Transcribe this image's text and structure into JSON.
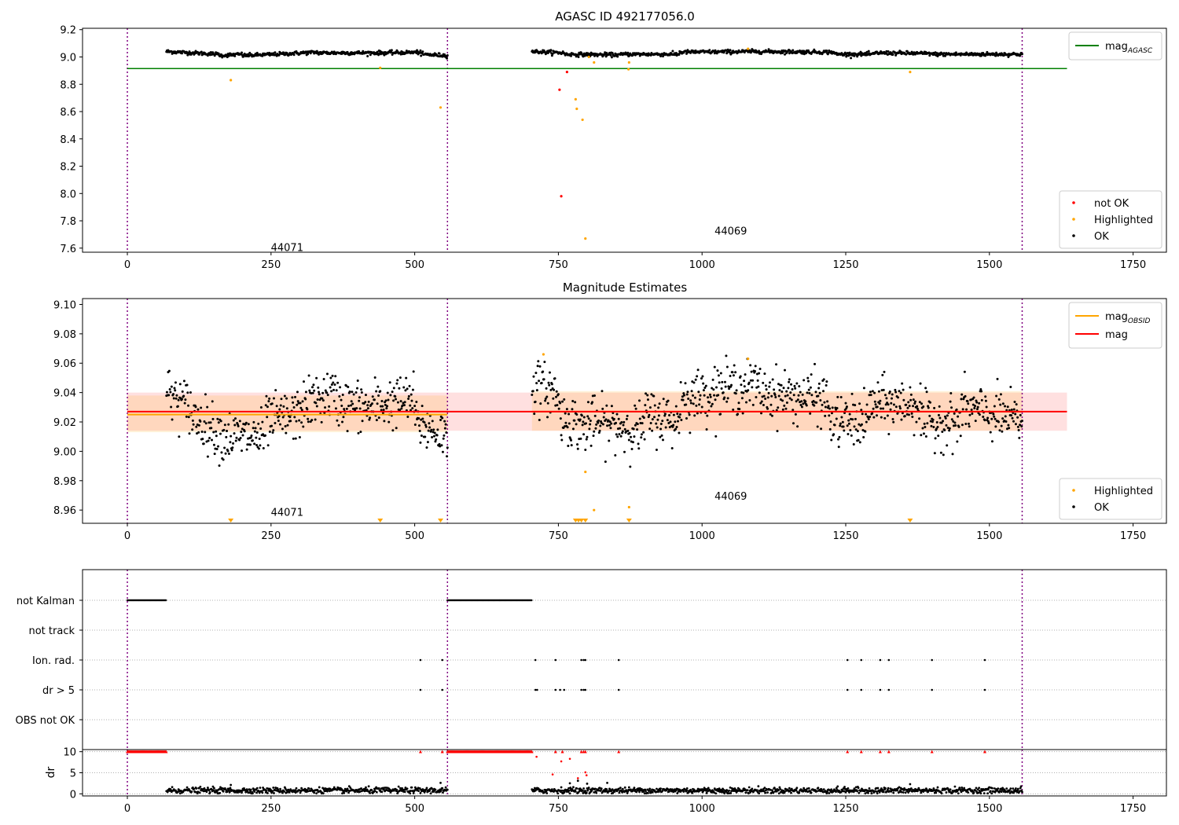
{
  "chart_data": [
    {
      "type": "scatter",
      "title": "AGASC ID 492177056.0",
      "xlim": [
        -78,
        1808
      ],
      "ylim": [
        7.57,
        9.21
      ],
      "xticks": [
        0,
        250,
        500,
        750,
        1000,
        1250,
        1500,
        1750
      ],
      "yticks": [
        7.6,
        7.8,
        8.0,
        8.2,
        8.4,
        8.6,
        8.8,
        9.0,
        9.2
      ],
      "obs_boundaries": [
        0,
        557,
        1557
      ],
      "obsid_labels": [
        {
          "text": "44071",
          "x": 278,
          "y": 7.58
        },
        {
          "text": "44069",
          "x": 1050,
          "y": 7.7
        }
      ],
      "mag_agasc": {
        "value": 8.915,
        "x_range": [
          0,
          1635
        ]
      },
      "ok_points": {
        "ranges": [
          [
            68,
            557
          ],
          [
            704,
            1557
          ]
        ],
        "segments": [
          {
            "x0": 68,
            "x1": 160,
            "y0": 9.04,
            "y1": 9.02
          },
          {
            "x0": 160,
            "x1": 200,
            "y0": 9.01,
            "y1": 9.02
          },
          {
            "x0": 200,
            "x1": 260,
            "y0": 9.01,
            "y1": 9.02
          },
          {
            "x0": 260,
            "x1": 330,
            "y0": 9.02,
            "y1": 9.035
          },
          {
            "x0": 330,
            "x1": 450,
            "y0": 9.03,
            "y1": 9.03
          },
          {
            "x0": 450,
            "x1": 510,
            "y0": 9.03,
            "y1": 9.035
          },
          {
            "x0": 510,
            "x1": 557,
            "y0": 9.02,
            "y1": 9.01
          },
          {
            "x0": 704,
            "x1": 760,
            "y0": 9.04,
            "y1": 9.03
          },
          {
            "x0": 760,
            "x1": 860,
            "y0": 9.02,
            "y1": 9.015
          },
          {
            "x0": 860,
            "x1": 960,
            "y0": 9.02,
            "y1": 9.02
          },
          {
            "x0": 960,
            "x1": 1100,
            "y0": 9.035,
            "y1": 9.04
          },
          {
            "x0": 1100,
            "x1": 1230,
            "y0": 9.04,
            "y1": 9.035
          },
          {
            "x0": 1230,
            "x1": 1300,
            "y0": 9.02,
            "y1": 9.02
          },
          {
            "x0": 1300,
            "x1": 1400,
            "y0": 9.03,
            "y1": 9.025
          },
          {
            "x0": 1400,
            "x1": 1557,
            "y0": 9.02,
            "y1": 9.02
          }
        ]
      },
      "highlighted_points": [
        {
          "x": 180,
          "y": 8.83
        },
        {
          "x": 440,
          "y": 8.92
        },
        {
          "x": 545,
          "y": 8.63
        },
        {
          "x": 780,
          "y": 8.69
        },
        {
          "x": 782,
          "y": 8.62
        },
        {
          "x": 792,
          "y": 8.54
        },
        {
          "x": 797,
          "y": 7.67
        },
        {
          "x": 803,
          "y": 9.0
        },
        {
          "x": 812,
          "y": 8.96
        },
        {
          "x": 872,
          "y": 8.91
        },
        {
          "x": 873,
          "y": 8.96
        },
        {
          "x": 1362,
          "y": 8.89
        },
        {
          "x": 1080,
          "y": 9.06
        }
      ],
      "not_ok_points": [
        {
          "x": 752,
          "y": 8.76
        },
        {
          "x": 755,
          "y": 7.98
        },
        {
          "x": 765,
          "y": 8.89
        }
      ],
      "legends": [
        {
          "position": "upper right",
          "entries": [
            {
              "label": "mag",
              "sub": "AGASC",
              "color": "#008000"
            }
          ]
        },
        {
          "position": "lower right",
          "entries": [
            {
              "label": "not OK",
              "color": "#ff0000"
            },
            {
              "label": "Highlighted",
              "color": "#ffa500"
            },
            {
              "label": "OK",
              "color": "#000000"
            }
          ]
        }
      ]
    },
    {
      "type": "scatter",
      "title": "Magnitude Estimates",
      "xlim": [
        -78,
        1808
      ],
      "ylim": [
        8.951,
        9.104
      ],
      "xticks": [
        0,
        250,
        500,
        750,
        1000,
        1250,
        1500,
        1750
      ],
      "yticks": [
        8.96,
        8.98,
        9.0,
        9.02,
        9.04,
        9.06,
        9.08,
        9.1
      ],
      "obs_boundaries": [
        0,
        557,
        1557
      ],
      "obsid_labels": [
        {
          "text": "44071",
          "x": 278,
          "y": 8.956
        },
        {
          "text": "44069",
          "x": 1050,
          "y": 8.967
        }
      ],
      "mag": {
        "value": 9.027,
        "band": [
          9.014,
          9.04
        ],
        "x_range": [
          0,
          1635
        ]
      },
      "mag_obsid": [
        {
          "value": 9.025,
          "band": [
            9.013,
            9.038
          ],
          "x_range": [
            0,
            557
          ]
        },
        {
          "value": 9.027,
          "band": [
            9.014,
            9.041
          ],
          "x_range": [
            704,
            1557
          ]
        }
      ],
      "ok_points": {
        "ranges": [
          [
            68,
            557
          ],
          [
            704,
            1557
          ]
        ],
        "segments": [
          {
            "x0": 68,
            "x1": 110,
            "y0": 9.04,
            "y1": 9.03
          },
          {
            "x0": 110,
            "x1": 170,
            "y0": 9.025,
            "y1": 9.01
          },
          {
            "x0": 170,
            "x1": 240,
            "y0": 9.01,
            "y1": 9.01
          },
          {
            "x0": 240,
            "x1": 300,
            "y0": 9.02,
            "y1": 9.025
          },
          {
            "x0": 300,
            "x1": 360,
            "y0": 9.03,
            "y1": 9.04
          },
          {
            "x0": 360,
            "x1": 430,
            "y0": 9.035,
            "y1": 9.028
          },
          {
            "x0": 430,
            "x1": 500,
            "y0": 9.032,
            "y1": 9.035
          },
          {
            "x0": 500,
            "x1": 557,
            "y0": 9.02,
            "y1": 9.01
          },
          {
            "x0": 704,
            "x1": 750,
            "y0": 9.045,
            "y1": 9.04
          },
          {
            "x0": 750,
            "x1": 800,
            "y0": 9.025,
            "y1": 9.015
          },
          {
            "x0": 800,
            "x1": 900,
            "y0": 9.02,
            "y1": 9.015
          },
          {
            "x0": 900,
            "x1": 960,
            "y0": 9.025,
            "y1": 9.02
          },
          {
            "x0": 960,
            "x1": 1020,
            "y0": 9.035,
            "y1": 9.04
          },
          {
            "x0": 1020,
            "x1": 1100,
            "y0": 9.042,
            "y1": 9.045
          },
          {
            "x0": 1100,
            "x1": 1220,
            "y0": 9.04,
            "y1": 9.035
          },
          {
            "x0": 1220,
            "x1": 1290,
            "y0": 9.02,
            "y1": 9.02
          },
          {
            "x0": 1290,
            "x1": 1380,
            "y0": 9.032,
            "y1": 9.032
          },
          {
            "x0": 1380,
            "x1": 1450,
            "y0": 9.02,
            "y1": 9.02
          },
          {
            "x0": 1450,
            "x1": 1557,
            "y0": 9.03,
            "y1": 9.02
          }
        ]
      },
      "highlighted_points": [
        {
          "x": 724,
          "y": 9.066
        },
        {
          "x": 1080,
          "y": 9.063
        },
        {
          "x": 797,
          "y": 8.986
        },
        {
          "x": 812,
          "y": 8.96
        },
        {
          "x": 873,
          "y": 8.962
        }
      ],
      "highlighted_below_range_x": [
        180,
        440,
        545,
        780,
        785,
        790,
        797,
        873,
        1362
      ],
      "legends": [
        {
          "position": "upper right",
          "entries": [
            {
              "label": "mag",
              "sub": "OBSID",
              "color": "#ffa500"
            },
            {
              "label": "mag",
              "color": "#ff0000"
            }
          ]
        },
        {
          "position": "lower right",
          "entries": [
            {
              "label": "Highlighted",
              "color": "#ffa500"
            },
            {
              "label": "OK",
              "color": "#000000"
            }
          ]
        }
      ]
    },
    {
      "type": "scatter",
      "title": "",
      "xlim": [
        -78,
        1808
      ],
      "xticks": [
        0,
        250,
        500,
        750,
        1000,
        1250,
        1500,
        1750
      ],
      "obs_boundaries": [
        0,
        557,
        1557
      ],
      "flag_rows": [
        "not Kalman",
        "not track",
        "Ion. rad.",
        "dr > 5",
        "OBS not OK"
      ],
      "flags": {
        "not Kalman": {
          "ranges": [
            [
              0,
              68
            ],
            [
              557,
              704
            ]
          ]
        },
        "not track": {
          "x": []
        },
        "Ion. rad.": {
          "x": [
            510,
            548,
            710,
            745,
            790,
            794,
            797,
            855,
            1253,
            1277,
            1310,
            1325,
            1400,
            1492
          ]
        },
        "dr > 5": {
          "x": [
            510,
            548,
            710,
            713,
            745,
            753,
            760,
            790,
            794,
            797,
            855,
            1253,
            1277,
            1310,
            1325,
            1400,
            1492
          ]
        },
        "OBS not OK": {
          "x": []
        }
      },
      "dr": {
        "ylabel": "dr",
        "ylim": [
          -0.5,
          10.5
        ],
        "yticks": [
          0,
          5,
          10
        ],
        "ok": {
          "ranges": [
            [
              68,
              557
            ],
            [
              704,
              1557
            ]
          ],
          "typical": 0.8
        },
        "ok_outliers": [
          {
            "x": 180,
            "y": 2.1
          },
          {
            "x": 545,
            "y": 2.6
          },
          {
            "x": 770,
            "y": 2.5
          },
          {
            "x": 784,
            "y": 3.1
          },
          {
            "x": 800,
            "y": 2.4
          },
          {
            "x": 835,
            "y": 2.6
          },
          {
            "x": 1362,
            "y": 2.3
          }
        ],
        "not_ok_capped": {
          "ranges": [
            [
              0,
              68
            ],
            [
              557,
              704
            ]
          ],
          "x": [
            510,
            548,
            745,
            757,
            790,
            794,
            797,
            855,
            1253,
            1277,
            1310,
            1325,
            1400,
            1492
          ],
          "value": 10
        },
        "not_ok_points": [
          {
            "x": 712,
            "y": 8.8
          },
          {
            "x": 740,
            "y": 4.6
          },
          {
            "x": 755,
            "y": 7.7
          },
          {
            "x": 770,
            "y": 8.3
          },
          {
            "x": 784,
            "y": 3.7
          },
          {
            "x": 797,
            "y": 5.1
          },
          {
            "x": 799,
            "y": 4.4
          }
        ]
      }
    }
  ]
}
